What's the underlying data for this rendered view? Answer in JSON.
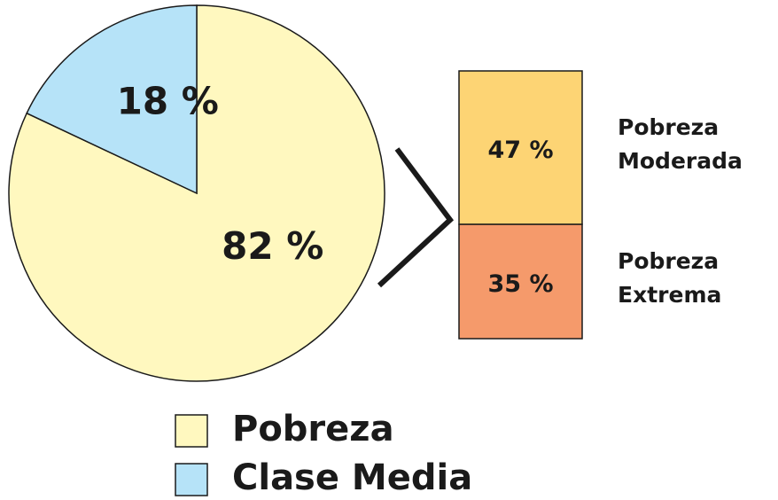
{
  "chart_data": [
    {
      "type": "pie",
      "categories": [
        "Pobreza",
        "Clase Media"
      ],
      "values": [
        82,
        18
      ],
      "value_labels": [
        "82 %",
        "18 %"
      ],
      "colors": [
        "#fff8bf",
        "#b6e3f8"
      ]
    },
    {
      "type": "stacked_bar",
      "categories": [
        "Pobreza Moderada",
        "Pobreza Extrema"
      ],
      "values": [
        47,
        35
      ],
      "value_labels": [
        "47 %",
        "35 %"
      ],
      "colors": [
        "#fdd474",
        "#f59a6b"
      ]
    }
  ]
}
